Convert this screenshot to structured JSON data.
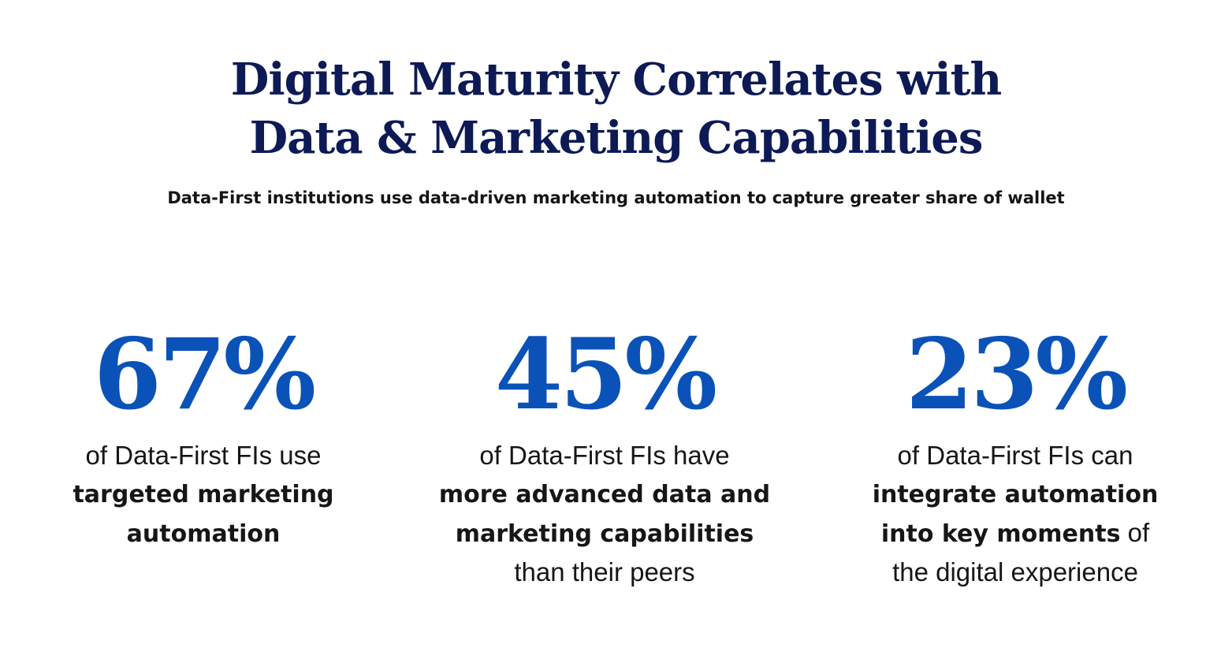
{
  "header": {
    "title_line1": "Digital Maturity Correlates with",
    "title_line2": "Data & Marketing Capabilities",
    "subtitle": "Data-First institutions use data-driven marketing automation to capture greater share of wallet"
  },
  "stats": [
    {
      "value": "67%",
      "line1": "of Data-First FIs use",
      "line2_bold": "targeted marketing",
      "line3_bold": "automation"
    },
    {
      "value": "45%",
      "line1": "of Data-First FIs have",
      "line2_bold": "more advanced data and",
      "line3_bold": "marketing capabilities",
      "line4": "than their peers"
    },
    {
      "value": "23%",
      "line1": "of Data-First FIs can",
      "line2_bold": "integrate automation",
      "line3_bold": "into key moments",
      "line3_tail": " of",
      "line4": "the digital experience"
    }
  ],
  "colors": {
    "title": "#0d1a55",
    "stat_value": "#0a52b8",
    "body_text": "#161616",
    "background": "#ffffff"
  }
}
